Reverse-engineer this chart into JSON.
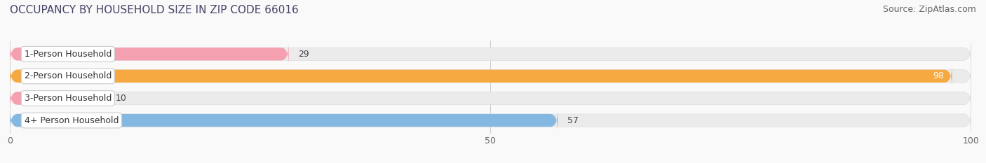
{
  "title": "OCCUPANCY BY HOUSEHOLD SIZE IN ZIP CODE 66016",
  "source": "Source: ZipAtlas.com",
  "categories": [
    "1-Person Household",
    "2-Person Household",
    "3-Person Household",
    "4+ Person Household"
  ],
  "values": [
    29,
    98,
    10,
    57
  ],
  "bar_colors": [
    "#f4a0b0",
    "#f5a940",
    "#f4a0b0",
    "#85b8e0"
  ],
  "bar_bg_color": "#ebebeb",
  "xlim": [
    0,
    100
  ],
  "xticks": [
    0,
    50,
    100
  ],
  "figsize": [
    14.06,
    2.33
  ],
  "dpi": 100,
  "title_fontsize": 11,
  "source_fontsize": 9,
  "label_fontsize": 9,
  "value_fontsize": 9,
  "bar_height": 0.58,
  "background_color": "#f9f9f9",
  "label_bg_color": "#ffffff",
  "label_border_color": "#cccccc",
  "orange_color": "#f5a940"
}
